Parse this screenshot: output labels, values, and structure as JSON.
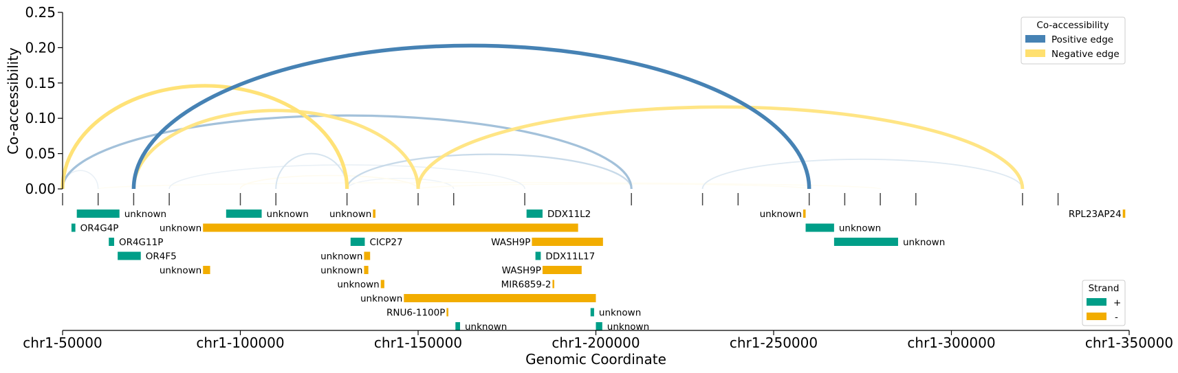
{
  "chart_data": {
    "type": "arc",
    "ylabel": "Co-accessibility",
    "xlabel": "Genomic Coordinate",
    "xlim": [
      50000,
      350000
    ],
    "ylim": [
      0,
      0.25
    ],
    "y_ticks": [
      "0.00",
      "0.05",
      "0.10",
      "0.15",
      "0.20",
      "0.25"
    ],
    "x_ticks": [
      {
        "value": 50000,
        "label": "chr1-50000"
      },
      {
        "value": 100000,
        "label": "chr1-100000"
      },
      {
        "value": 150000,
        "label": "chr1-150000"
      },
      {
        "value": 200000,
        "label": "chr1-200000"
      },
      {
        "value": 250000,
        "label": "chr1-250000"
      },
      {
        "value": 300000,
        "label": "chr1-300000"
      },
      {
        "value": 350000,
        "label": "chr1-350000"
      }
    ],
    "peak_positions": [
      50000,
      60000,
      70000,
      80000,
      100000,
      110000,
      130000,
      150000,
      160000,
      180000,
      210000,
      230000,
      240000,
      260000,
      270000,
      280000,
      290000,
      320000,
      330000
    ],
    "colors": {
      "positive": "#4682b4",
      "negative": "#ffe070",
      "plus_strand": "#009e88",
      "minus_strand": "#f2ad00"
    },
    "legend_coaccess": {
      "title": "Co-accessibility",
      "entries": [
        {
          "label": "Positive edge",
          "color": "#4682b4"
        },
        {
          "label": "Negative edge",
          "color": "#ffe070"
        }
      ]
    },
    "legend_strand": {
      "title": "Strand",
      "entries": [
        {
          "label": "+",
          "color": "#009e88"
        },
        {
          "label": "-",
          "color": "#f2ad00"
        }
      ]
    },
    "links": [
      {
        "start": 70000,
        "end": 260000,
        "height": 0.203,
        "sign": "positive",
        "strength": 1.0
      },
      {
        "start": 50000,
        "end": 210000,
        "height": 0.104,
        "sign": "positive",
        "strength": 0.5
      },
      {
        "start": 130000,
        "end": 210000,
        "height": 0.049,
        "sign": "positive",
        "strength": 0.3
      },
      {
        "start": 110000,
        "end": 130000,
        "height": 0.05,
        "sign": "positive",
        "strength": 0.22
      },
      {
        "start": 230000,
        "end": 320000,
        "height": 0.042,
        "sign": "positive",
        "strength": 0.18
      },
      {
        "start": 80000,
        "end": 180000,
        "height": 0.034,
        "sign": "positive",
        "strength": 0.12
      },
      {
        "start": 50000,
        "end": 60000,
        "height": 0.026,
        "sign": "positive",
        "strength": 0.12
      },
      {
        "start": 130000,
        "end": 160000,
        "height": 0.015,
        "sign": "positive",
        "strength": 0.1
      },
      {
        "start": 50000,
        "end": 130000,
        "height": 0.146,
        "sign": "negative",
        "strength": 0.95
      },
      {
        "start": 70000,
        "end": 150000,
        "height": 0.111,
        "sign": "negative",
        "strength": 0.85
      },
      {
        "start": 150000,
        "end": 320000,
        "height": 0.116,
        "sign": "negative",
        "strength": 0.85
      },
      {
        "start": 100000,
        "end": 150000,
        "height": 0.019,
        "sign": "negative",
        "strength": 0.12
      },
      {
        "start": 60000,
        "end": 280000,
        "height": 0.009,
        "sign": "negative",
        "strength": 0.1
      },
      {
        "start": 150000,
        "end": 260000,
        "height": 0.007,
        "sign": "negative",
        "strength": 0.1
      }
    ],
    "genes": [
      {
        "name": "unknown",
        "start": 54000,
        "end": 66000,
        "strand": "+",
        "row": 0,
        "label_side": "right"
      },
      {
        "name": "unknown",
        "start": 96000,
        "end": 106000,
        "strand": "+",
        "row": 0,
        "label_side": "right"
      },
      {
        "name": "unknown",
        "start": 137300,
        "end": 138000,
        "strand": "-",
        "row": 0,
        "label_side": "left"
      },
      {
        "name": "DDX11L2",
        "start": 180500,
        "end": 185000,
        "strand": "+",
        "row": 0,
        "label_side": "right"
      },
      {
        "name": "unknown",
        "start": 258300,
        "end": 259000,
        "strand": "-",
        "row": 0,
        "label_side": "left"
      },
      {
        "name": "RPL23AP24",
        "start": 348200,
        "end": 348900,
        "strand": "-",
        "row": 0,
        "label_side": "left"
      },
      {
        "name": "OR4G4P",
        "start": 52500,
        "end": 53600,
        "strand": "+",
        "row": 1,
        "label_side": "right"
      },
      {
        "name": "unknown",
        "start": 89500,
        "end": 195000,
        "strand": "-",
        "row": 1,
        "label_side": "left"
      },
      {
        "name": "unknown",
        "start": 259000,
        "end": 267000,
        "strand": "+",
        "row": 1,
        "label_side": "right"
      },
      {
        "name": "OR4G11P",
        "start": 63000,
        "end": 64500,
        "strand": "+",
        "row": 2,
        "label_side": "right"
      },
      {
        "name": "CICP27",
        "start": 131000,
        "end": 135000,
        "strand": "+",
        "row": 2,
        "label_side": "right"
      },
      {
        "name": "WASH9P",
        "start": 182000,
        "end": 202000,
        "strand": "-",
        "row": 2,
        "label_side": "left"
      },
      {
        "name": "unknown",
        "start": 267000,
        "end": 285000,
        "strand": "+",
        "row": 2,
        "label_side": "right"
      },
      {
        "name": "OR4F5",
        "start": 65500,
        "end": 72000,
        "strand": "+",
        "row": 3,
        "label_side": "right"
      },
      {
        "name": "unknown",
        "start": 134800,
        "end": 136500,
        "strand": "-",
        "row": 3,
        "label_side": "left"
      },
      {
        "name": "DDX11L17",
        "start": 183000,
        "end": 184500,
        "strand": "+",
        "row": 3,
        "label_side": "right"
      },
      {
        "name": "unknown",
        "start": 89500,
        "end": 91500,
        "strand": "-",
        "row": 4,
        "label_side": "left"
      },
      {
        "name": "unknown",
        "start": 134800,
        "end": 136000,
        "strand": "-",
        "row": 4,
        "label_side": "left"
      },
      {
        "name": "WASH9P",
        "start": 185000,
        "end": 196000,
        "strand": "-",
        "row": 4,
        "label_side": "left"
      },
      {
        "name": "unknown",
        "start": 139500,
        "end": 140500,
        "strand": "-",
        "row": 5,
        "label_side": "left"
      },
      {
        "name": "MIR6859-2",
        "start": 187800,
        "end": 188300,
        "strand": "-",
        "row": 5,
        "label_side": "left"
      },
      {
        "name": "unknown",
        "start": 146000,
        "end": 200000,
        "strand": "-",
        "row": 6,
        "label_side": "left"
      },
      {
        "name": "RNU6-1100P",
        "start": 158000,
        "end": 158500,
        "strand": "-",
        "row": 7,
        "label_side": "left"
      },
      {
        "name": "unknown",
        "start": 198500,
        "end": 199500,
        "strand": "+",
        "row": 7,
        "label_side": "right"
      },
      {
        "name": "unknown",
        "start": 160500,
        "end": 161800,
        "strand": "+",
        "row": 8,
        "label_side": "right"
      },
      {
        "name": "unknown",
        "start": 200000,
        "end": 201800,
        "strand": "+",
        "row": 8,
        "label_side": "right"
      }
    ]
  }
}
